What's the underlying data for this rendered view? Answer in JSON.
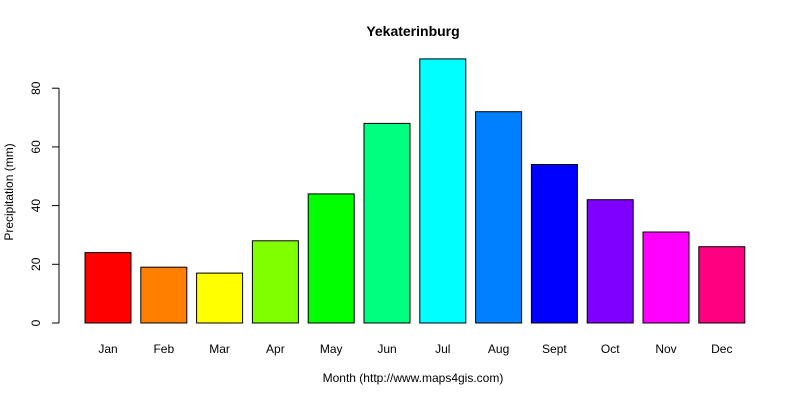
{
  "chart_data": {
    "type": "bar",
    "title": "Yekaterinburg",
    "xlabel": "Month (http://www.maps4gis.com)",
    "ylabel": "Precipitation (mm)",
    "categories": [
      "Jan",
      "Feb",
      "Mar",
      "Apr",
      "May",
      "Jun",
      "Jul",
      "Aug",
      "Sept",
      "Oct",
      "Nov",
      "Dec"
    ],
    "values": [
      24,
      19,
      17,
      28,
      44,
      68,
      90,
      72,
      54,
      42,
      31,
      26
    ],
    "colors": [
      "#ff0000",
      "#ff8000",
      "#ffff00",
      "#80ff00",
      "#00ff00",
      "#00ff80",
      "#00ffff",
      "#0080ff",
      "#0000ff",
      "#8000ff",
      "#ff00ff",
      "#ff0080"
    ],
    "yticks": [
      0,
      20,
      40,
      60,
      80
    ],
    "ylim": [
      0,
      90
    ],
    "grid": false
  }
}
